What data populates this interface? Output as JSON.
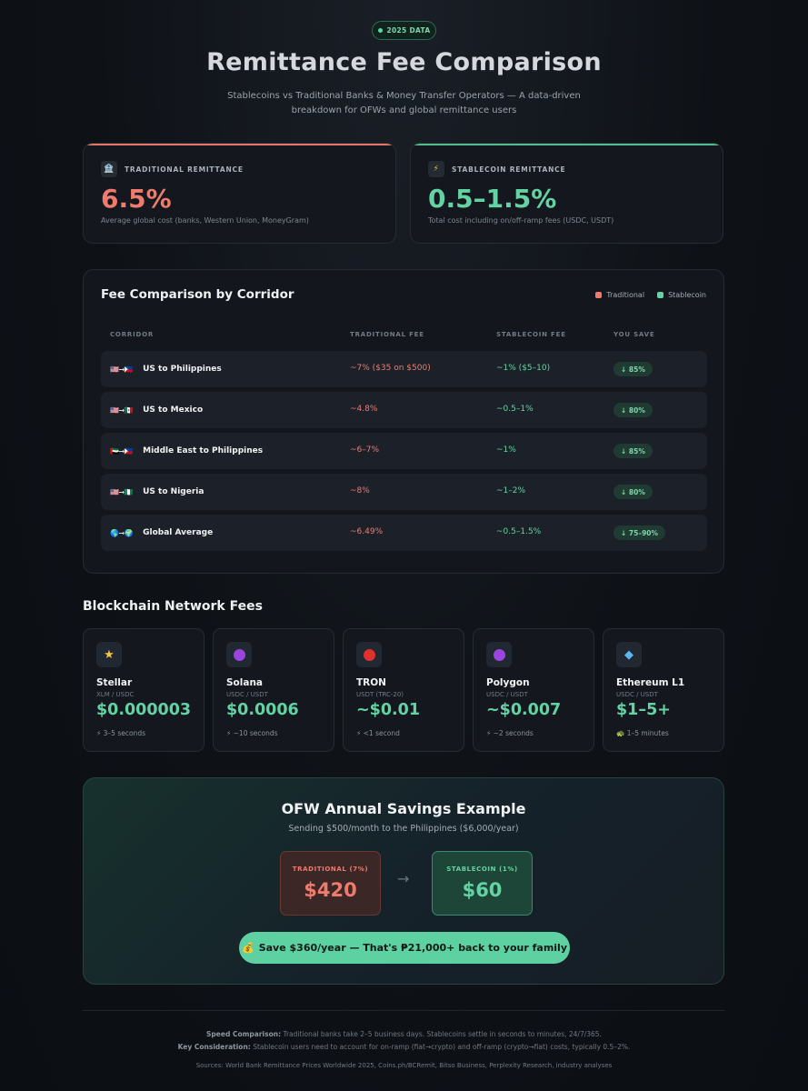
{
  "badge": "2025 DATA",
  "title": "Remittance Fee Comparison",
  "subtitle": "Stablecoins vs Traditional Banks & Money Transfer Operators — A data-driven breakdown for OFWs and global remittance users",
  "colors": {
    "traditional": "#ee7b6d",
    "stablecoin": "#63d3a3",
    "accent_green": "#5ed1a2"
  },
  "stats": {
    "traditional": {
      "icon": "bank-icon",
      "label": "TRADITIONAL REMITTANCE",
      "value": "6.5%",
      "note": "Average global cost (banks, Western Union, MoneyGram)"
    },
    "stablecoin": {
      "icon": "lightning-icon",
      "label": "STABLECOIN REMITTANCE",
      "value": "0.5–1.5%",
      "note": "Total cost including on/off-ramp fees (USDC, USDT)"
    }
  },
  "corridors": {
    "title": "Fee Comparison by Corridor",
    "legend": {
      "traditional": "Traditional",
      "stablecoin": "Stablecoin"
    },
    "headers": {
      "corridor": "CORRIDOR",
      "traditional": "TRADITIONAL FEE",
      "stablecoin": "STABLECOIN FEE",
      "save": "YOU SAVE"
    },
    "rows": [
      {
        "flags": "🇺🇸➞🇵🇭",
        "name": "US to Philippines",
        "traditional": "~7% ($35 on $500)",
        "stablecoin": "~1% ($5–10)",
        "save": "↓ 85%"
      },
      {
        "flags": "🇺🇸➞🇲🇽",
        "name": "US to Mexico",
        "traditional": "~4.8%",
        "stablecoin": "~0.5–1%",
        "save": "↓ 80%"
      },
      {
        "flags": "🇦🇪➞🇵🇭",
        "name": "Middle East to Philippines",
        "traditional": "~6–7%",
        "stablecoin": "~1%",
        "save": "↓ 85%"
      },
      {
        "flags": "🇺🇸➞🇳🇬",
        "name": "US to Nigeria",
        "traditional": "~8%",
        "stablecoin": "~1–2%",
        "save": "↓ 80%"
      },
      {
        "flags": "🌎➞🌍",
        "name": "Global Average",
        "traditional": "~6.49%",
        "stablecoin": "~0.5–1.5%",
        "save": "↓ 75–90%"
      }
    ]
  },
  "networks": {
    "title": "Blockchain Network Fees",
    "items": [
      {
        "icon": "star-icon",
        "glyph": "★",
        "name": "Stellar",
        "pair": "XLM / USDC",
        "fee": "$0.000003",
        "speed": "⚡ 3–5 seconds"
      },
      {
        "icon": "purple-circle-icon",
        "glyph": "",
        "name": "Solana",
        "pair": "USDC / USDT",
        "fee": "$0.0006",
        "speed": "⚡ ~10 seconds"
      },
      {
        "icon": "red-circle-icon",
        "glyph": "",
        "name": "TRON",
        "pair": "USDT (TRC-20)",
        "fee": "~$0.01",
        "speed": "⚡ <1 second"
      },
      {
        "icon": "purple-circle-icon",
        "glyph": "",
        "name": "Polygon",
        "pair": "USDC / USDT",
        "fee": "~$0.007",
        "speed": "⚡ ~2 seconds"
      },
      {
        "icon": "diamond-icon",
        "glyph": "◆",
        "name": "Ethereum L1",
        "pair": "USDC / USDT",
        "fee": "$1–5+",
        "speed": "🐢 1–5 minutes"
      }
    ]
  },
  "savings": {
    "title": "OFW Annual Savings Example",
    "subtitle": "Sending $500/month to the Philippines ($6,000/year)",
    "traditional_label": "TRADITIONAL (7%)",
    "traditional_amount": "$420",
    "stablecoin_label": "STABLECOIN (1%)",
    "stablecoin_amount": "$60",
    "arrow": "→",
    "cta": "Save $360/year — That's ₱21,000+ back to your family",
    "cta_icon": "money-bag-icon"
  },
  "footer": {
    "speed_label": "Speed Comparison:",
    "speed_text": "Traditional banks take 2–5 business days. Stablecoins settle in seconds to minutes, 24/7/365.",
    "key_label": "Key Consideration:",
    "key_text": "Stablecoin users need to account for on-ramp (fiat→crypto) and off-ramp (crypto→fiat) costs, typically 0.5–2%.",
    "sources": "Sources: World Bank Remittance Prices Worldwide 2025, Coins.ph/BCRemit, Bitso Business, Perplexity Research, industry analyses"
  }
}
